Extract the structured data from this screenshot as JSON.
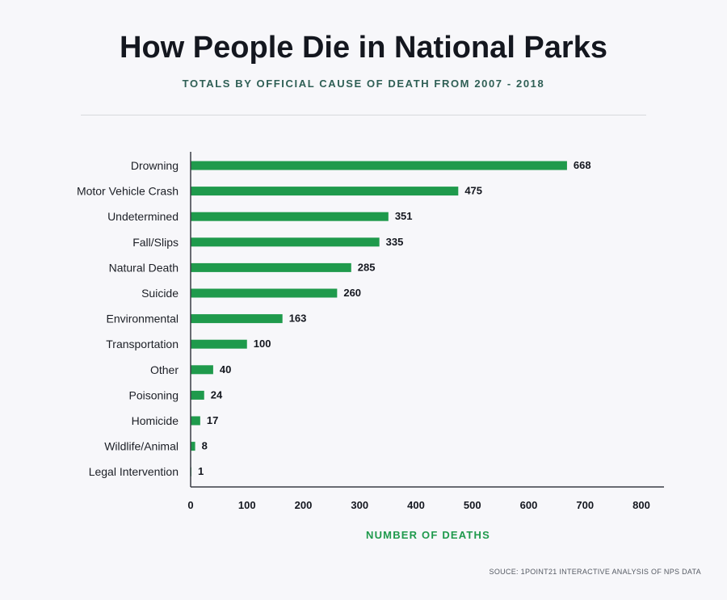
{
  "chart_data": {
    "type": "bar",
    "orientation": "horizontal",
    "title": "How People Die in National Parks",
    "subtitle": "TOTALS BY OFFICIAL CAUSE OF DEATH FROM 2007 - 2018",
    "xlabel": "NUMBER OF DEATHS",
    "ylabel": "",
    "xlim": [
      0,
      800
    ],
    "ticks": [
      "0",
      "100",
      "200",
      "300",
      "400",
      "500",
      "600",
      "700",
      "800"
    ],
    "categories": [
      "Drowning",
      "Motor Vehicle Crash",
      "Undetermined",
      "Fall/Slips",
      "Natural Death",
      "Suicide",
      "Environmental",
      "Transportation",
      "Other",
      "Poisoning",
      "Homicide",
      "Wildlife/Animal",
      "Legal Intervention"
    ],
    "values": [
      668,
      475,
      351,
      335,
      285,
      260,
      163,
      100,
      40,
      24,
      17,
      8,
      1
    ],
    "bar_color": "#1f9a4c",
    "grid": false,
    "legend": "none"
  },
  "source": "SOUCE: 1POINT21 INTERACTIVE ANALYSIS OF NPS DATA"
}
